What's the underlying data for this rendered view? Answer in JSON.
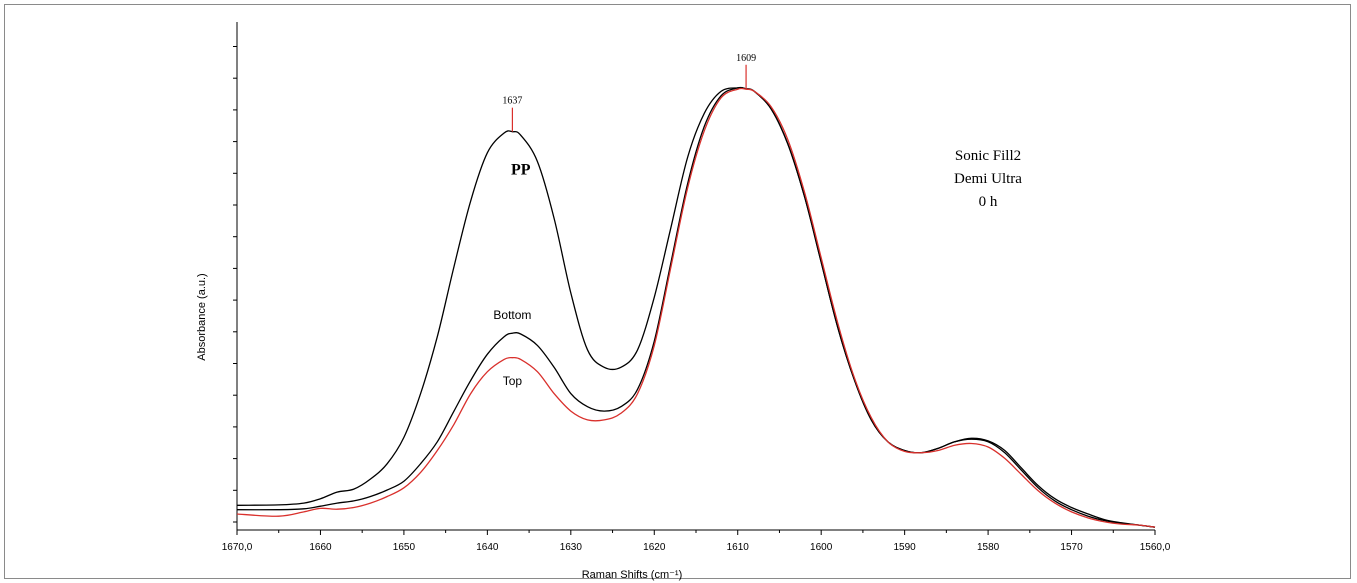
{
  "chart_data": {
    "type": "line",
    "xlabel": "Raman Shifts (cm⁻¹)",
    "ylabel": "Absorbance (a.u.)",
    "xlim": [
      1670,
      1560
    ],
    "x_reversed": true,
    "ylim": [
      0,
      1
    ],
    "xticks": [
      {
        "value": 1670,
        "label": "1670,0"
      },
      {
        "value": 1660,
        "label": "1660"
      },
      {
        "value": 1650,
        "label": "1650"
      },
      {
        "value": 1640,
        "label": "1640"
      },
      {
        "value": 1630,
        "label": "1630"
      },
      {
        "value": 1620,
        "label": "1620"
      },
      {
        "value": 1610,
        "label": "1610"
      },
      {
        "value": 1600,
        "label": "1600"
      },
      {
        "value": 1590,
        "label": "1590"
      },
      {
        "value": 1580,
        "label": "1580"
      },
      {
        "value": 1570,
        "label": "1570"
      },
      {
        "value": 1560,
        "label": "1560,0"
      }
    ],
    "annotations": [
      {
        "text": "Sonic Fill2"
      },
      {
        "text": "Demi Ultra"
      },
      {
        "text": "0 h"
      }
    ],
    "peak_markers": [
      {
        "x": 1637,
        "y": 0.898,
        "label": "1637"
      },
      {
        "x": 1609,
        "y": 0.996,
        "label": "1609"
      }
    ],
    "series": [
      {
        "name": "PP",
        "color": "#000000",
        "label_at": [
          1636,
          0.8
        ],
        "x": [
          1670,
          1665,
          1662,
          1660,
          1658,
          1656,
          1654,
          1652,
          1650,
          1648,
          1646,
          1644,
          1642,
          1640,
          1638,
          1637,
          1636,
          1634,
          1632,
          1630,
          1628,
          1626,
          1624,
          1622,
          1620,
          1618,
          1616,
          1614,
          1612,
          1610,
          1609,
          1608,
          1606,
          1604,
          1602,
          1600,
          1598,
          1596,
          1594,
          1592,
          1590,
          1588,
          1586,
          1584,
          1582,
          1580,
          1578,
          1576,
          1574,
          1572,
          1570,
          1568,
          1566,
          1564,
          1562,
          1560
        ],
        "y": [
          0.045,
          0.046,
          0.05,
          0.06,
          0.075,
          0.082,
          0.105,
          0.14,
          0.2,
          0.3,
          0.43,
          0.59,
          0.74,
          0.85,
          0.895,
          0.898,
          0.89,
          0.83,
          0.7,
          0.53,
          0.4,
          0.36,
          0.36,
          0.4,
          0.52,
          0.68,
          0.84,
          0.94,
          0.99,
          0.998,
          0.996,
          0.99,
          0.95,
          0.87,
          0.75,
          0.6,
          0.45,
          0.33,
          0.24,
          0.19,
          0.17,
          0.165,
          0.175,
          0.19,
          0.198,
          0.192,
          0.17,
          0.13,
          0.09,
          0.06,
          0.04,
          0.025,
          0.012,
          0.005,
          0.0,
          -0.005
        ]
      },
      {
        "name": "Bottom",
        "color": "#000000",
        "label_at": [
          1637,
          0.47
        ],
        "x": [
          1670,
          1665,
          1662,
          1660,
          1658,
          1656,
          1654,
          1652,
          1650,
          1648,
          1646,
          1644,
          1642,
          1640,
          1638,
          1637,
          1636,
          1634,
          1632,
          1630,
          1628,
          1626,
          1624,
          1622,
          1620,
          1618,
          1616,
          1614,
          1612,
          1610,
          1609,
          1608,
          1606,
          1604,
          1602,
          1600,
          1598,
          1596,
          1594,
          1592,
          1590,
          1588,
          1586,
          1584,
          1582,
          1580,
          1578,
          1576,
          1574,
          1572,
          1570,
          1568,
          1566,
          1564,
          1562,
          1560
        ],
        "y": [
          0.035,
          0.035,
          0.037,
          0.043,
          0.05,
          0.055,
          0.065,
          0.08,
          0.1,
          0.14,
          0.19,
          0.26,
          0.33,
          0.39,
          0.43,
          0.438,
          0.436,
          0.41,
          0.36,
          0.3,
          0.27,
          0.26,
          0.27,
          0.31,
          0.42,
          0.6,
          0.78,
          0.91,
          0.98,
          0.998,
          0.996,
          0.99,
          0.95,
          0.87,
          0.75,
          0.6,
          0.45,
          0.33,
          0.24,
          0.19,
          0.17,
          0.165,
          0.175,
          0.19,
          0.196,
          0.19,
          0.165,
          0.125,
          0.085,
          0.055,
          0.035,
          0.02,
          0.01,
          0.004,
          0.0,
          -0.005
        ]
      },
      {
        "name": "Top",
        "color": "#d9302c",
        "label_at": [
          1637,
          0.32
        ],
        "x": [
          1670,
          1665,
          1662,
          1660,
          1658,
          1656,
          1654,
          1652,
          1650,
          1648,
          1646,
          1644,
          1642,
          1640,
          1638,
          1637,
          1636,
          1634,
          1632,
          1630,
          1628,
          1626,
          1624,
          1622,
          1620,
          1618,
          1616,
          1614,
          1612,
          1610,
          1609,
          1608,
          1606,
          1604,
          1602,
          1600,
          1598,
          1596,
          1594,
          1592,
          1590,
          1588,
          1586,
          1584,
          1582,
          1580,
          1578,
          1576,
          1574,
          1572,
          1570,
          1568,
          1566,
          1564,
          1562,
          1560
        ],
        "y": [
          0.025,
          0.02,
          0.03,
          0.038,
          0.036,
          0.04,
          0.05,
          0.065,
          0.085,
          0.12,
          0.17,
          0.23,
          0.3,
          0.35,
          0.378,
          0.382,
          0.378,
          0.35,
          0.3,
          0.26,
          0.24,
          0.24,
          0.255,
          0.3,
          0.41,
          0.59,
          0.77,
          0.9,
          0.975,
          0.995,
          0.995,
          0.99,
          0.955,
          0.88,
          0.76,
          0.61,
          0.46,
          0.335,
          0.245,
          0.19,
          0.168,
          0.165,
          0.17,
          0.182,
          0.186,
          0.178,
          0.152,
          0.115,
          0.078,
          0.05,
          0.03,
          0.016,
          0.007,
          0.002,
          0.0,
          -0.005
        ]
      }
    ]
  }
}
